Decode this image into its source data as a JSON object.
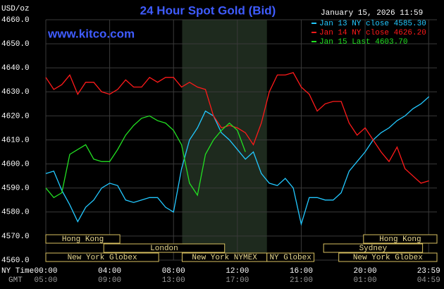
{
  "chart_data": {
    "type": "line",
    "title": "24 Hour Spot Gold (Bid)",
    "unit_label": "USD/oz",
    "timestamp": "January 15, 2026 11:59",
    "website": "www.kitco.com",
    "x_row_labels": [
      "NY Time",
      "GMT"
    ],
    "xlim": [
      0,
      24.5
    ],
    "xticks": [
      {
        "value": 0,
        "label": "00:00"
      },
      {
        "value": 4,
        "label": "04:00"
      },
      {
        "value": 8,
        "label": "08:00"
      },
      {
        "value": 12,
        "label": "12:00"
      },
      {
        "value": 16,
        "label": "16:00"
      },
      {
        "value": 20,
        "label": "20:00"
      },
      {
        "value": 23.98,
        "label": "23:59"
      }
    ],
    "gmt_tick_labels": [
      "05:00",
      "09:00",
      "13:00",
      "17:00",
      "21:00",
      "01:00",
      "04:59"
    ],
    "ylim": [
      4560,
      4660
    ],
    "yticks": [
      {
        "value": 4560,
        "label": "4560.0"
      },
      {
        "value": 4570,
        "label": "4570.0"
      },
      {
        "value": 4580,
        "label": "4580.0"
      },
      {
        "value": 4590,
        "label": "4590.0"
      },
      {
        "value": 4600,
        "label": "4600.0"
      },
      {
        "value": 4610,
        "label": "4610.0"
      },
      {
        "value": 4620,
        "label": "4620.0"
      },
      {
        "value": 4630,
        "label": "4630.0"
      },
      {
        "value": 4640,
        "label": "4640.0"
      },
      {
        "value": 4650,
        "label": "4650.0"
      },
      {
        "value": 4660,
        "label": "4660.0"
      }
    ],
    "grid": true,
    "sessions": [
      {
        "label": "Hong Kong",
        "start": 0,
        "end": 4.64
      },
      {
        "label": "Hong Kong",
        "start": 19.9,
        "end": 24.5
      },
      {
        "label": "London",
        "start": 3.63,
        "end": 11.2
      },
      {
        "label": "Sydney",
        "start": 17.4,
        "end": 23.6
      },
      {
        "label": "New York Globex",
        "start": 0,
        "end": 7.07
      },
      {
        "label": "New York NYMEX",
        "start": 8.54,
        "end": 13.85
      },
      {
        "label": "NY Globex",
        "start": 13.85,
        "end": 16.8
      },
      {
        "label": "New York Globex",
        "start": 18.35,
        "end": 24.5
      }
    ],
    "x": [
      0,
      0.5,
      1,
      1.5,
      2,
      2.5,
      3,
      3.5,
      4,
      4.5,
      5,
      5.5,
      6,
      6.5,
      7,
      7.5,
      8,
      8.5,
      9,
      9.5,
      10,
      10.5,
      11,
      11.5,
      12,
      12.5,
      13,
      13.5,
      14,
      14.5,
      15,
      15.5,
      16,
      16.5,
      17,
      17.5,
      18,
      18.5,
      19,
      19.5,
      20,
      20.5,
      21,
      21.5,
      22,
      22.5,
      23,
      23.5,
      24
    ],
    "series": [
      {
        "name": "Jan 13 NY close 4585.30",
        "color": "#22c8ff",
        "values": [
          4596,
          4597,
          4589,
          4583,
          4576,
          4582,
          4585,
          4590,
          4592,
          4591,
          4585,
          4584,
          4585,
          4586,
          4586,
          4582,
          4580,
          4598,
          4610,
          4615,
          4622,
          4620,
          4613,
          4610,
          4606,
          4602,
          4605,
          4596,
          4592,
          4591,
          4594,
          4590,
          4575,
          4586,
          4586,
          4585,
          4585,
          4588,
          4597,
          4601,
          4605,
          4610,
          4613,
          4615,
          4618,
          4620,
          4623,
          4625,
          4628
        ]
      },
      {
        "name": "Jan 14 NY close 4626.20",
        "color": "#ff1a1a",
        "values": [
          4636,
          4631,
          4633,
          4637,
          4629,
          4634,
          4634,
          4630,
          4629,
          4631,
          4635,
          4632,
          4632,
          4636,
          4634,
          4636,
          4636,
          4632,
          4634,
          4632,
          4631,
          4620,
          4615,
          4616,
          4615,
          4613,
          4608,
          4617,
          4630,
          4637,
          4637,
          4638,
          4632,
          4629,
          4622,
          4625,
          4626,
          4626,
          4617,
          4612,
          4615,
          4610,
          4605,
          4601,
          4607,
          4598,
          4595,
          4592,
          4593
        ]
      },
      {
        "name": "Jan 15 Last 4603.70",
        "color": "#22e022",
        "values": [
          4590,
          4586,
          4588,
          4604,
          4606,
          4608,
          4602,
          4601,
          4601,
          4606,
          4612,
          4616,
          4619,
          4620,
          4618,
          4617,
          4614,
          4608,
          4592,
          4587,
          4604,
          4610,
          4614,
          4617,
          4614,
          4605,
          null,
          null,
          null,
          null,
          null,
          null,
          null,
          null,
          null,
          null,
          null,
          null,
          null,
          null,
          null,
          null,
          null,
          null,
          null,
          null,
          null,
          null,
          null
        ]
      }
    ]
  }
}
